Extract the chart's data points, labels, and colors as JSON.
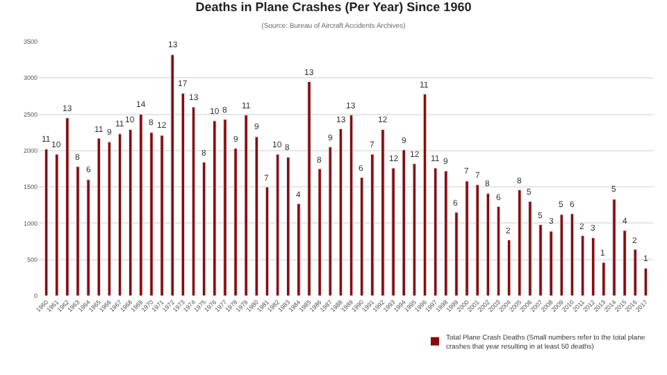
{
  "chart_data": {
    "type": "bar",
    "title": "Deaths in Plane Crashes (Per Year) Since 1960",
    "subtitle": "(Source: Bureau of Aircraft Accidents Archives)",
    "categories": [
      "1960",
      "1961",
      "1962",
      "1963",
      "1964",
      "1965",
      "1966",
      "1967",
      "1968",
      "1969",
      "1970",
      "1971",
      "1972",
      "1973",
      "1974",
      "1975",
      "1976",
      "1977",
      "1978",
      "1979",
      "1980",
      "1981",
      "1982",
      "1983",
      "1984",
      "1985",
      "1986",
      "1987",
      "1988",
      "1989",
      "1990",
      "1991",
      "1992",
      "1993",
      "1994",
      "1995",
      "1996",
      "1997",
      "1998",
      "1999",
      "2000",
      "2001",
      "2002",
      "2003",
      "2004",
      "2005",
      "2006",
      "2007",
      "2008",
      "2009",
      "2010",
      "2011",
      "2012",
      "2013",
      "2014",
      "2015",
      "2016",
      "2017"
    ],
    "series": [
      {
        "name": "Total Plane Crash Deaths (Small numbers refer to the total plane\ncrashes that year resulting in at least 50 deaths)",
        "color": "#8b0a0a",
        "values": [
          2020,
          1950,
          2450,
          1780,
          1600,
          2170,
          2120,
          2230,
          2290,
          2500,
          2250,
          2210,
          3320,
          2790,
          2600,
          1840,
          2410,
          2430,
          2030,
          2490,
          2190,
          1500,
          1950,
          1910,
          1270,
          2950,
          1750,
          2050,
          2300,
          2490,
          1630,
          1950,
          2290,
          1760,
          2010,
          1820,
          2780,
          1760,
          1720,
          1150,
          1580,
          1530,
          1410,
          1230,
          770,
          1460,
          1300,
          980,
          890,
          1120,
          1130,
          830,
          800,
          460,
          1330,
          900,
          640,
          380
        ]
      }
    ],
    "annotations": [
      {
        "text": "11",
        "x": "1960",
        "y": 2020
      },
      {
        "text": "10",
        "x": "1961",
        "y": 1950
      },
      {
        "text": "13",
        "x": "1962",
        "y": 2450
      },
      {
        "text": "8",
        "x": "1963",
        "y": 1780
      },
      {
        "text": "6",
        "x": "1964",
        "y": 1600
      },
      {
        "text": "11",
        "x": "1965",
        "y": 2170
      },
      {
        "text": "9",
        "x": "1966",
        "y": 2120
      },
      {
        "text": "11",
        "x": "1967",
        "y": 2230
      },
      {
        "text": "10",
        "x": "1968",
        "y": 2290
      },
      {
        "text": "14",
        "x": "1969",
        "y": 2500
      },
      {
        "text": "8",
        "x": "1970",
        "y": 2250
      },
      {
        "text": "12",
        "x": "1971",
        "y": 2210
      },
      {
        "text": "13",
        "x": "1972",
        "y": 3320
      },
      {
        "text": "17",
        "x": "1973",
        "y": 2790
      },
      {
        "text": "13",
        "x": "1974",
        "y": 2600
      },
      {
        "text": "8",
        "x": "1975",
        "y": 1840
      },
      {
        "text": "10",
        "x": "1976",
        "y": 2410
      },
      {
        "text": "8",
        "x": "1977",
        "y": 2430
      },
      {
        "text": "9",
        "x": "1978",
        "y": 2030
      },
      {
        "text": "11",
        "x": "1979",
        "y": 2490
      },
      {
        "text": "9",
        "x": "1980",
        "y": 2190
      },
      {
        "text": "7",
        "x": "1981",
        "y": 1500
      },
      {
        "text": "10",
        "x": "1982",
        "y": 1950
      },
      {
        "text": "8",
        "x": "1983",
        "y": 1910
      },
      {
        "text": "4",
        "x": "1984",
        "y": 1270
      },
      {
        "text": "13",
        "x": "1985",
        "y": 2950
      },
      {
        "text": "8",
        "x": "1986",
        "y": 1750
      },
      {
        "text": "9",
        "x": "1987",
        "y": 2050
      },
      {
        "text": "13",
        "x": "1988",
        "y": 2300
      },
      {
        "text": "13",
        "x": "1989",
        "y": 2490
      },
      {
        "text": "6",
        "x": "1990",
        "y": 1630
      },
      {
        "text": "7",
        "x": "1991",
        "y": 1950
      },
      {
        "text": "12",
        "x": "1992",
        "y": 2290
      },
      {
        "text": "12",
        "x": "1993",
        "y": 1760
      },
      {
        "text": "9",
        "x": "1994",
        "y": 2010
      },
      {
        "text": "12",
        "x": "1995",
        "y": 1820
      },
      {
        "text": "11",
        "x": "1996",
        "y": 2780
      },
      {
        "text": "11",
        "x": "1997",
        "y": 1760
      },
      {
        "text": "9",
        "x": "1998",
        "y": 1720
      },
      {
        "text": "6",
        "x": "1999",
        "y": 1150
      },
      {
        "text": "7",
        "x": "2000",
        "y": 1580
      },
      {
        "text": "7",
        "x": "2001",
        "y": 1530
      },
      {
        "text": "8",
        "x": "2002",
        "y": 1410
      },
      {
        "text": "6",
        "x": "2003",
        "y": 1230
      },
      {
        "text": "2",
        "x": "2004",
        "y": 770
      },
      {
        "text": "8",
        "x": "2005",
        "y": 1460
      },
      {
        "text": "5",
        "x": "2006",
        "y": 1300
      },
      {
        "text": "5",
        "x": "2007",
        "y": 980
      },
      {
        "text": "3",
        "x": "2008",
        "y": 890
      },
      {
        "text": "5",
        "x": "2009",
        "y": 1120
      },
      {
        "text": "6",
        "x": "2010",
        "y": 1130
      },
      {
        "text": "2",
        "x": "2011",
        "y": 830
      },
      {
        "text": "3",
        "x": "2012",
        "y": 800
      },
      {
        "text": "1",
        "x": "2013",
        "y": 460
      },
      {
        "text": "5",
        "x": "2014",
        "y": 1330
      },
      {
        "text": "4",
        "x": "2015",
        "y": 900
      },
      {
        "text": "2",
        "x": "2016",
        "y": 640
      },
      {
        "text": "1",
        "x": "2017",
        "y": 380
      }
    ],
    "ylim": [
      0,
      3500
    ],
    "yticks": [
      0,
      500,
      1000,
      1500,
      2000,
      2500,
      3000,
      3500
    ],
    "grid": "y",
    "legend": "bottom right"
  }
}
